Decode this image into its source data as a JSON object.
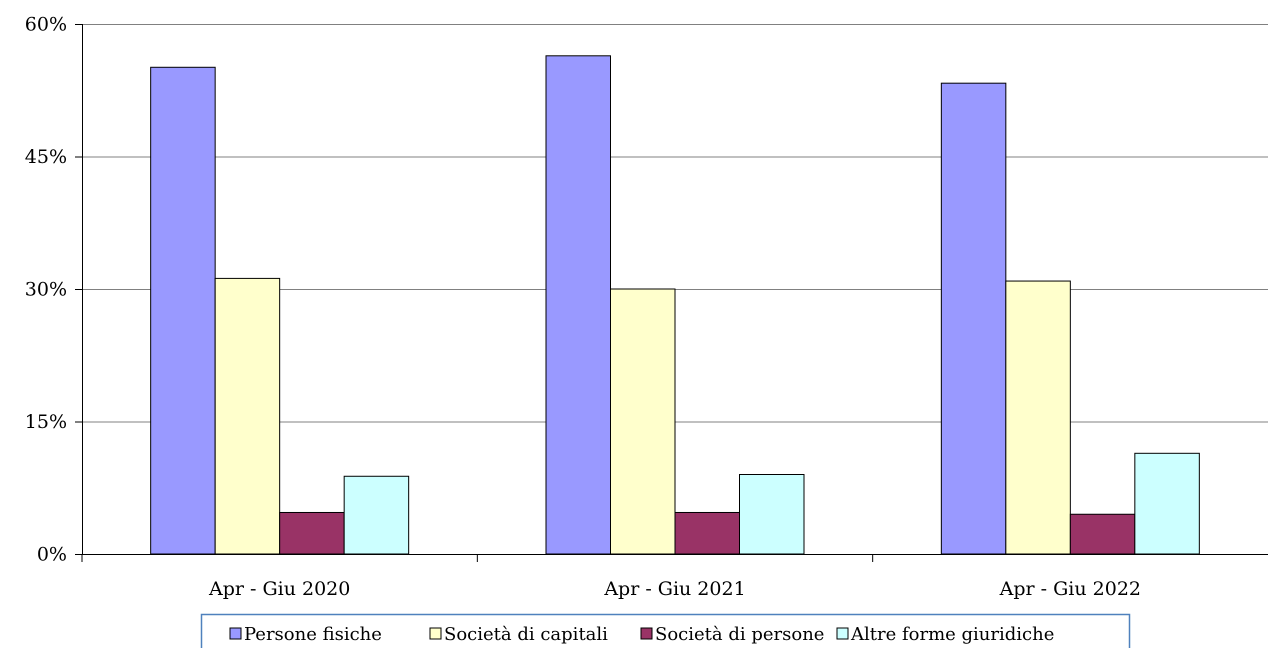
{
  "chart_data": {
    "type": "bar",
    "title": "",
    "xlabel": "",
    "ylabel": "",
    "categories": [
      "Apr - Giu 2020",
      "Apr - Giu 2021",
      "Apr - Giu 2022"
    ],
    "ylim": [
      0,
      60
    ],
    "yticks": [
      0,
      15,
      30,
      45,
      60
    ],
    "ytick_labels": [
      "0%",
      "15%",
      "30%",
      "45%",
      "60%"
    ],
    "grid": true,
    "legend_position": "bottom",
    "series": [
      {
        "name": "Persone fisiche",
        "color": "#9999ff",
        "values": [
          55.1,
          56.4,
          53.3
        ]
      },
      {
        "name": "Società di capitali",
        "color": "#ffffcc",
        "values": [
          31.2,
          30.0,
          30.9
        ]
      },
      {
        "name": "Società di persone",
        "color": "#993366",
        "values": [
          4.7,
          4.7,
          4.5
        ]
      },
      {
        "name": "Altre forme giuridiche",
        "color": "#ccffff",
        "values": [
          8.8,
          9.0,
          11.4
        ]
      }
    ]
  }
}
